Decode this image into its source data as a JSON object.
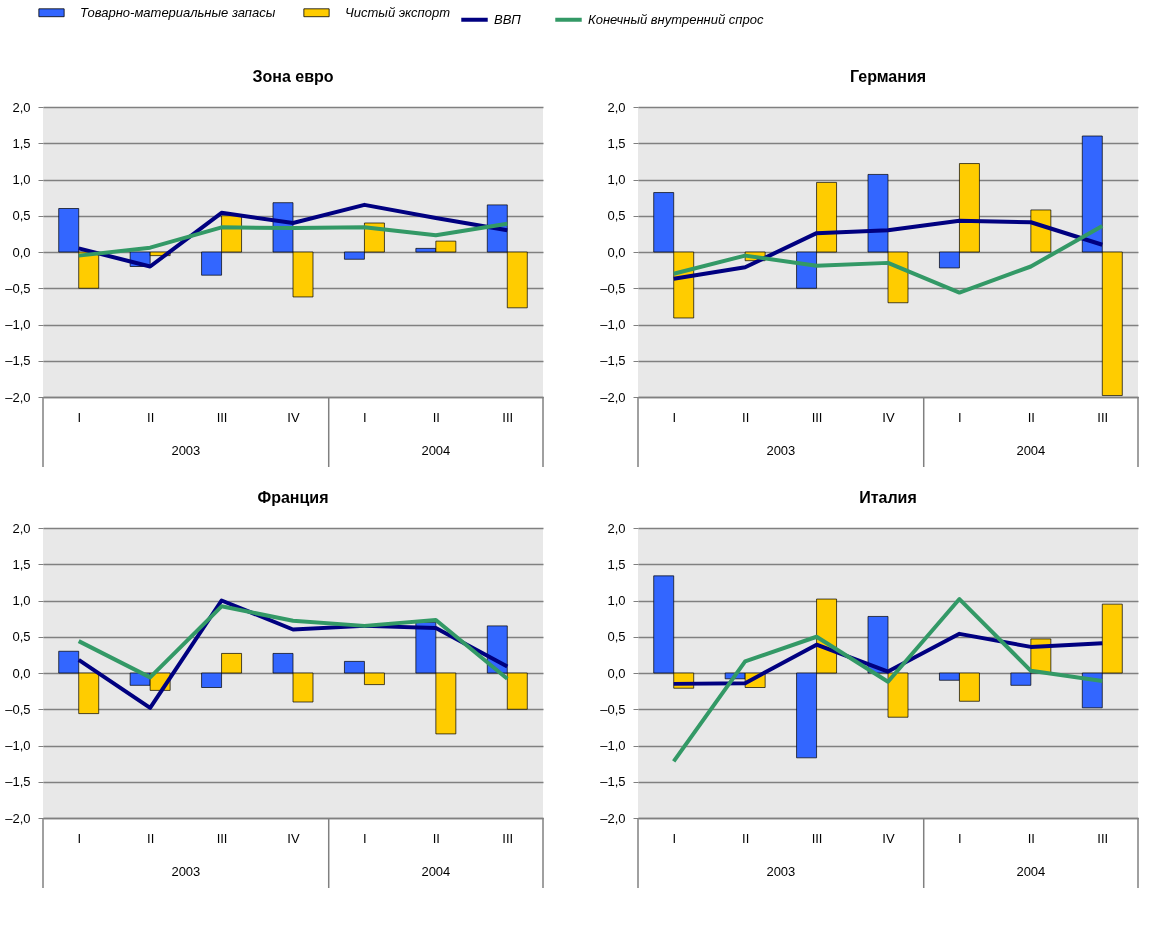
{
  "chart_data": [
    {
      "type": "bar",
      "title": "Зона евро",
      "legend": "top",
      "grid": "y",
      "categories": [
        "I",
        "II",
        "III",
        "IV",
        "I",
        "II",
        "III"
      ],
      "annotations": [
        "2003",
        "2004"
      ],
      "ylim": [
        -2,
        2
      ],
      "yticks": [
        {
          "value": -2,
          "label": "–2,0"
        },
        {
          "value": -1.5,
          "label": "–1,5"
        },
        {
          "value": -1,
          "label": "–1,0"
        },
        {
          "value": -0.5,
          "label": "–0,5"
        },
        {
          "value": 0,
          "label": "0,0"
        },
        {
          "value": 0.5,
          "label": "0,5"
        },
        {
          "value": 1,
          "label": "1,0"
        },
        {
          "value": 1.5,
          "label": "1,5"
        },
        {
          "value": 2,
          "label": "2,0"
        }
      ],
      "series": [
        {
          "name": "Товарно-материальные запасы",
          "color": "#3366ff",
          "values": [
            0.6,
            -0.2,
            -0.32,
            0.68,
            -0.1,
            0.05,
            0.65
          ]
        },
        {
          "name": "Чистый экспорт",
          "color": "#ffcc00",
          "values": [
            -0.5,
            -0.05,
            0.5,
            -0.62,
            0.4,
            0.15,
            -0.77
          ]
        },
        {
          "name": "ВВП",
          "type": "line",
          "color": "#000080",
          "values": [
            0.05,
            -0.2,
            0.54,
            0.4,
            0.65,
            0.47,
            0.3
          ]
        },
        {
          "name": "Конечный внутренний спрос",
          "type": "line",
          "color": "#339966",
          "values": [
            -0.05,
            0.06,
            0.34,
            0.33,
            0.34,
            0.23,
            0.39
          ]
        }
      ]
    },
    {
      "type": "bar",
      "title": "Германия",
      "grid": "y",
      "categories": [
        "I",
        "II",
        "III",
        "IV",
        "I",
        "II",
        "III"
      ],
      "annotations": [
        "2003",
        "2004"
      ],
      "ylim": [
        -2,
        2
      ],
      "yticks": [
        {
          "value": -2,
          "label": "–2,0"
        },
        {
          "value": -1.5,
          "label": "–1,5"
        },
        {
          "value": -1,
          "label": "–1,0"
        },
        {
          "value": -0.5,
          "label": "–0,5"
        },
        {
          "value": 0,
          "label": "0,0"
        },
        {
          "value": 0.5,
          "label": "0,5"
        },
        {
          "value": 1,
          "label": "1,0"
        },
        {
          "value": 1.5,
          "label": "1,5"
        },
        {
          "value": 2,
          "label": "2,0"
        }
      ],
      "series": [
        {
          "color": "#3366ff",
          "values": [
            0.82,
            0.0,
            -0.5,
            1.07,
            -0.22,
            0.0,
            1.6
          ]
        },
        {
          "color": "#ffcc00",
          "values": [
            -0.91,
            -0.12,
            0.96,
            -0.7,
            1.22,
            0.58,
            -1.98
          ]
        },
        {
          "type": "line",
          "color": "#000080",
          "values": [
            -0.37,
            -0.21,
            0.26,
            0.3,
            0.43,
            0.41,
            0.1
          ]
        },
        {
          "type": "line",
          "color": "#339966",
          "values": [
            -0.3,
            -0.05,
            -0.19,
            -0.15,
            -0.56,
            -0.2,
            0.36
          ]
        }
      ]
    },
    {
      "type": "bar",
      "title": "Франция",
      "grid": "y",
      "categories": [
        "I",
        "II",
        "III",
        "IV",
        "I",
        "II",
        "III"
      ],
      "annotations": [
        "2003",
        "2004"
      ],
      "ylim": [
        -2,
        2
      ],
      "yticks": [
        {
          "value": -2,
          "label": "–2,0"
        },
        {
          "value": -1.5,
          "label": "–1,5"
        },
        {
          "value": -1,
          "label": "–1,0"
        },
        {
          "value": -0.5,
          "label": "–0,5"
        },
        {
          "value": 0,
          "label": "0,0"
        },
        {
          "value": 0.5,
          "label": "0,5"
        },
        {
          "value": 1,
          "label": "1,0"
        },
        {
          "value": 1.5,
          "label": "1,5"
        },
        {
          "value": 2,
          "label": "2,0"
        }
      ],
      "series": [
        {
          "color": "#3366ff",
          "values": [
            0.3,
            -0.17,
            -0.2,
            0.27,
            0.16,
            0.7,
            0.65
          ]
        },
        {
          "color": "#ffcc00",
          "values": [
            -0.56,
            -0.24,
            0.27,
            -0.4,
            -0.16,
            -0.84,
            -0.5
          ]
        },
        {
          "type": "line",
          "color": "#000080",
          "values": [
            0.18,
            -0.48,
            1.0,
            0.6,
            0.65,
            0.62,
            0.09
          ]
        },
        {
          "type": "line",
          "color": "#339966",
          "values": [
            0.44,
            -0.06,
            0.92,
            0.72,
            0.65,
            0.73,
            -0.08
          ]
        }
      ]
    },
    {
      "type": "bar",
      "title": "Италия",
      "grid": "y",
      "categories": [
        "I",
        "II",
        "III",
        "IV",
        "I",
        "II",
        "III"
      ],
      "annotations": [
        "2003",
        "2004"
      ],
      "ylim": [
        -2,
        2
      ],
      "yticks": [
        {
          "value": -2,
          "label": "–2,0"
        },
        {
          "value": -1.5,
          "label": "–1,5"
        },
        {
          "value": -1,
          "label": "–1,0"
        },
        {
          "value": -0.5,
          "label": "–0,5"
        },
        {
          "value": 0,
          "label": "0,0"
        },
        {
          "value": 0.5,
          "label": "0,5"
        },
        {
          "value": 1,
          "label": "1,0"
        },
        {
          "value": 1.5,
          "label": "1,5"
        },
        {
          "value": 2,
          "label": "2,0"
        }
      ],
      "series": [
        {
          "color": "#3366ff",
          "values": [
            1.34,
            -0.08,
            -1.17,
            0.78,
            -0.1,
            -0.17,
            -0.48
          ]
        },
        {
          "color": "#ffcc00",
          "values": [
            -0.21,
            -0.2,
            1.02,
            -0.61,
            -0.39,
            0.47,
            0.95
          ]
        },
        {
          "type": "line",
          "color": "#000080",
          "values": [
            -0.15,
            -0.14,
            0.39,
            0.02,
            0.54,
            0.36,
            0.41
          ]
        },
        {
          "type": "line",
          "color": "#339966",
          "values": [
            -1.22,
            0.16,
            0.5,
            -0.12,
            1.02,
            0.03,
            -0.11
          ]
        }
      ]
    }
  ]
}
